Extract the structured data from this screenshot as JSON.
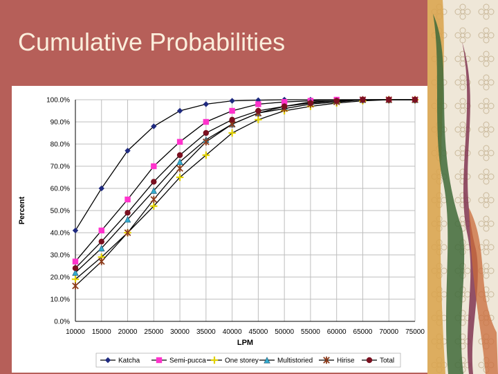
{
  "slide": {
    "title": "Cumulative Probabilities",
    "background_color": "#b65f59",
    "title_color": "#fbeedc"
  },
  "chart_data": {
    "type": "line",
    "xlabel": "LPM",
    "ylabel": "Percent",
    "categories": [
      "10000",
      "15000",
      "20000",
      "25000",
      "30000",
      "35000",
      "40000",
      "45000",
      "50000",
      "55000",
      "60000",
      "65000",
      "70000",
      "75000"
    ],
    "ylim": [
      0,
      100
    ],
    "yticks": [
      "0.0%",
      "10.0%",
      "20.0%",
      "30.0%",
      "40.0%",
      "50.0%",
      "60.0%",
      "70.0%",
      "80.0%",
      "90.0%",
      "100.0%"
    ],
    "grid": true,
    "legend_position": "bottom",
    "series": [
      {
        "name": "Katcha",
        "color": "#1f2a80",
        "marker": "diamond",
        "values": [
          41,
          60,
          77,
          88,
          95,
          98,
          99.5,
          99.8,
          100,
          100,
          100,
          100,
          100,
          100
        ]
      },
      {
        "name": "Semi-pucca",
        "color": "#ff33cc",
        "marker": "square",
        "values": [
          27,
          41,
          55,
          70,
          81,
          90,
          95,
          98,
          99,
          99.5,
          100,
          100,
          100,
          100
        ]
      },
      {
        "name": "One storey",
        "color": "#e0d000",
        "marker": "plus",
        "values": [
          19,
          29,
          40,
          52,
          65,
          75,
          85,
          91,
          95,
          97,
          98.5,
          99.5,
          100,
          100
        ]
      },
      {
        "name": "Multistoried",
        "color": "#33aacc",
        "marker": "triangle",
        "values": [
          22,
          33,
          46,
          59,
          72,
          82,
          89,
          94,
          97,
          99,
          99.5,
          100,
          100,
          100
        ]
      },
      {
        "name": "Hirise",
        "color": "#8b3a1a",
        "marker": "star",
        "values": [
          16,
          27,
          40,
          55,
          69,
          81,
          89,
          94,
          96,
          98,
          99,
          100,
          100,
          100
        ]
      },
      {
        "name": "Total",
        "color": "#7a1020",
        "marker": "circle",
        "values": [
          24,
          36,
          49,
          63,
          75,
          85,
          91,
          95,
          97,
          98.5,
          99.5,
          100,
          100,
          100
        ]
      }
    ]
  }
}
